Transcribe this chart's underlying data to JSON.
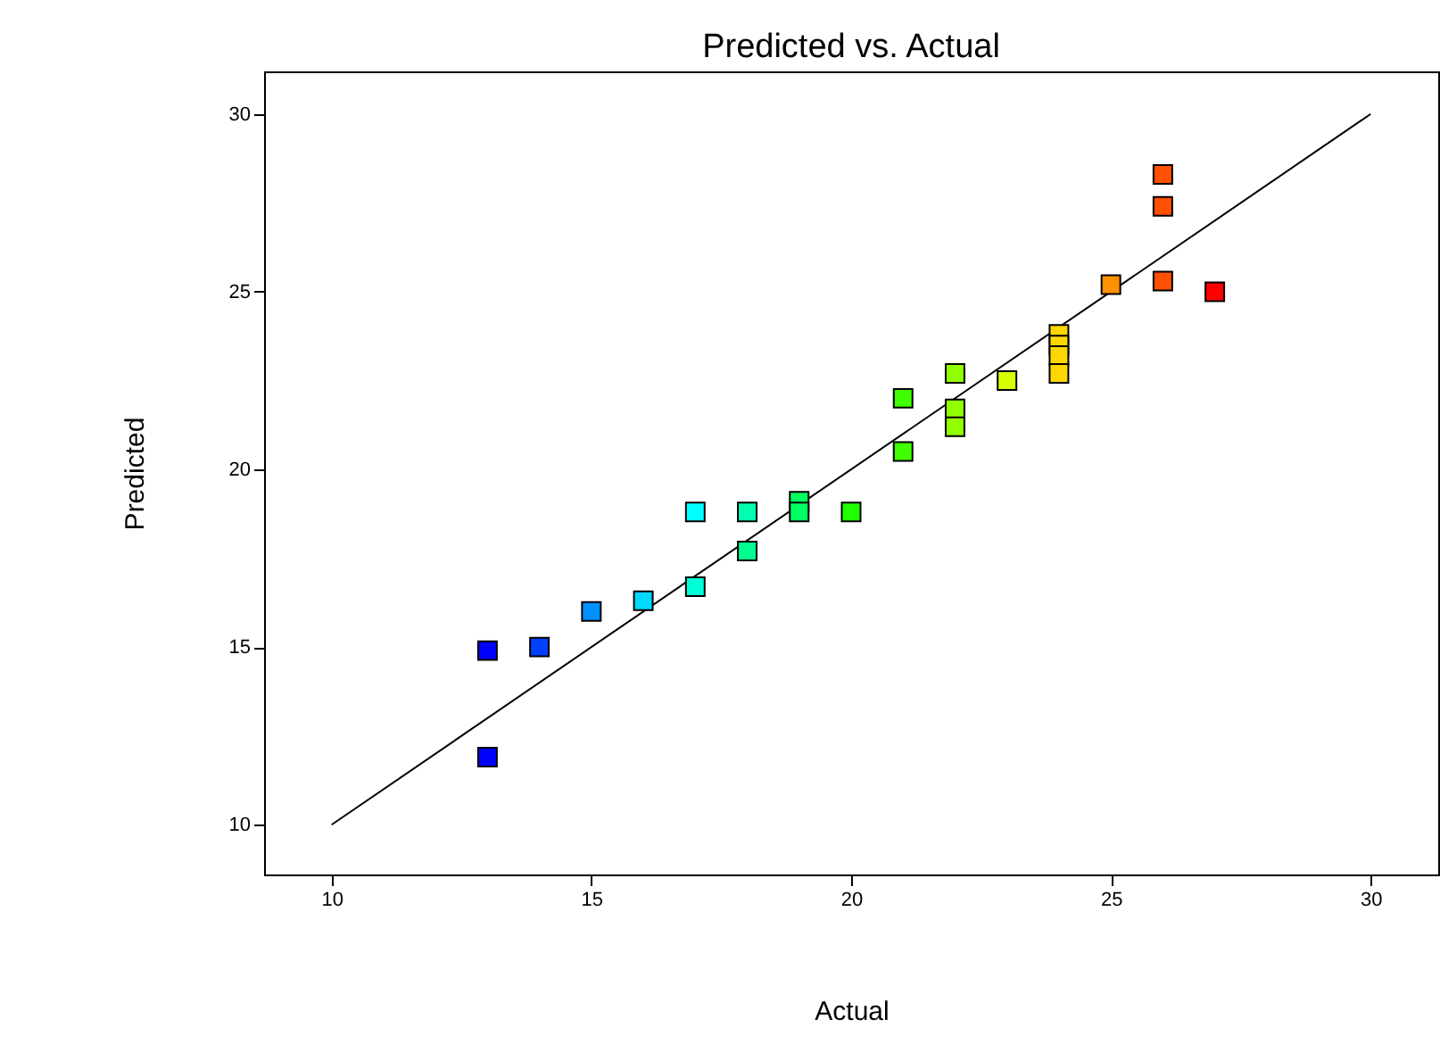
{
  "chart_data": {
    "type": "scatter",
    "title": "Predicted vs. Actual",
    "xlabel": "Actual",
    "ylabel": "Predicted",
    "xlim": [
      8.7,
      31.3
    ],
    "ylim": [
      8.6,
      31.2
    ],
    "xticks": [
      10,
      15,
      20,
      25,
      30
    ],
    "yticks": [
      10,
      15,
      20,
      25,
      30
    ],
    "grid": false,
    "series": [
      {
        "marker": "square",
        "x": [
          13,
          13,
          14,
          15,
          16,
          17,
          17,
          18,
          18,
          19,
          19,
          20,
          21,
          21,
          22,
          22,
          22,
          23,
          24,
          24,
          24,
          24,
          25,
          26,
          26,
          26,
          27
        ],
        "values": [
          14.9,
          11.9,
          15.0,
          16.0,
          16.3,
          16.7,
          18.8,
          18.8,
          17.7,
          19.1,
          18.8,
          18.8,
          22.0,
          20.5,
          22.7,
          21.7,
          21.2,
          22.5,
          23.8,
          23.5,
          23.2,
          22.7,
          25.2,
          28.3,
          27.4,
          25.3,
          25.0
        ],
        "colors": [
          "#0000ff",
          "#0000ff",
          "#0040ff",
          "#0090ff",
          "#00d8ff",
          "#00ffd8",
          "#00ffff",
          "#00ffb0",
          "#00ff90",
          "#00ff60",
          "#00ff60",
          "#20ff00",
          "#40ff00",
          "#40ff00",
          "#90ff00",
          "#90ff00",
          "#90ff00",
          "#d8ff00",
          "#ffd700",
          "#ffd700",
          "#ffd700",
          "#ffd700",
          "#ff9000",
          "#ff5000",
          "#ff5000",
          "#ff5000",
          "#ff0000"
        ]
      },
      {
        "type": "line",
        "color": "#000000",
        "x": [
          10,
          30
        ],
        "values": [
          10,
          30
        ]
      }
    ]
  }
}
